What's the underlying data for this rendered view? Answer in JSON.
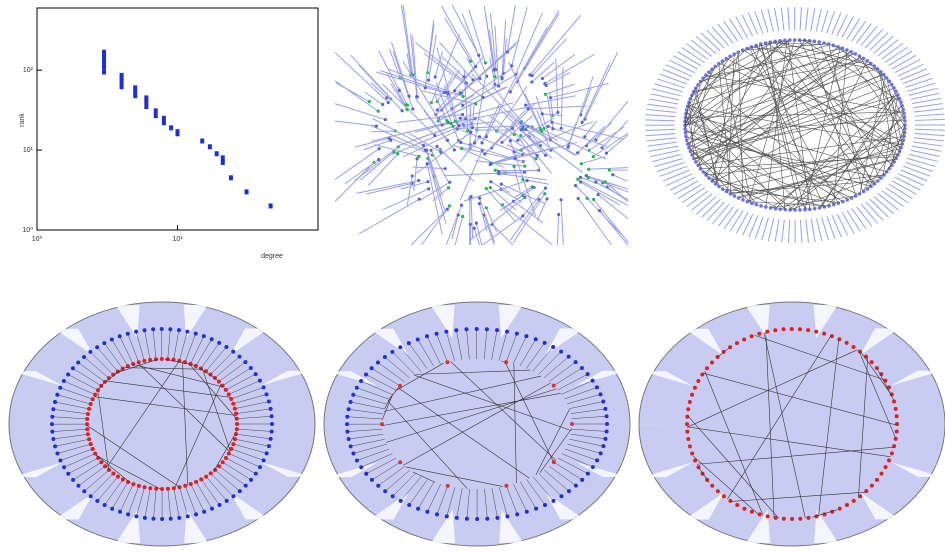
{
  "chart_data": {
    "type": "scatter",
    "x_label": "degree",
    "y_label": "rank",
    "x": [
      3,
      3,
      3,
      3,
      3,
      3,
      4,
      4,
      4,
      4,
      5,
      5,
      5,
      6,
      6,
      6,
      7,
      7,
      8,
      8,
      9,
      10,
      10,
      15,
      17,
      19,
      21,
      21,
      24,
      31,
      46
    ],
    "y": [
      95,
      110,
      125,
      140,
      155,
      168,
      62,
      70,
      78,
      86,
      48,
      54,
      60,
      35,
      40,
      45,
      27,
      31,
      22,
      25,
      19,
      16,
      17,
      13,
      11,
      9,
      8,
      7,
      4.5,
      3,
      2
    ],
    "color": "#1f2fd0",
    "log_x": true,
    "log_y": true,
    "xlim": [
      1,
      100
    ],
    "ylim": [
      1,
      600
    ],
    "xticks": [
      {
        "value": 1,
        "label": "10⁰"
      },
      {
        "value": 10,
        "label": "10¹"
      }
    ],
    "yticks": [
      {
        "value": 1,
        "label": "10⁰"
      },
      {
        "value": 10,
        "label": "10¹"
      },
      {
        "value": 100,
        "label": "10²"
      }
    ]
  }
}
